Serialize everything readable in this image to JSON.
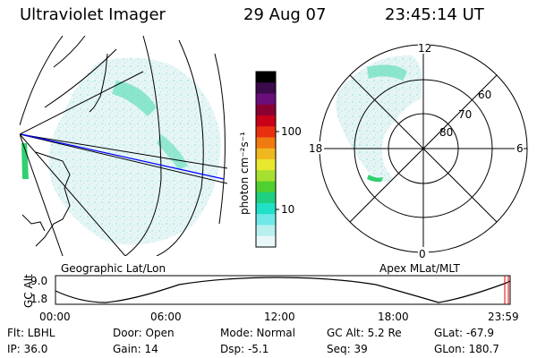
{
  "header": {
    "title": "Ultraviolet Imager",
    "date": "29 Aug 07",
    "time": "23:45:14 UT"
  },
  "colorbar": {
    "unit_label": "photon cm⁻²s⁻¹",
    "ticks": [
      "100",
      "10"
    ],
    "colors": [
      "#000000",
      "#3a0a4a",
      "#6a0f7a",
      "#8a0030",
      "#c80018",
      "#e83010",
      "#f07a10",
      "#f0b820",
      "#e8e830",
      "#a8e030",
      "#50d030",
      "#20d080",
      "#20e0c8",
      "#70e8e8",
      "#b8f0f0",
      "#e8f8f8"
    ]
  },
  "left_map": {
    "caption": "Geographic Lat/Lon"
  },
  "right_map": {
    "caption": "Apex MLat/MLT",
    "mlt_labels": [
      "12",
      "18",
      "6",
      "0"
    ],
    "lat_labels": [
      "60",
      "70",
      "80"
    ]
  },
  "timeline": {
    "ylabel": "GC Alt",
    "yticks": [
      "9.0",
      "1.8"
    ],
    "xticks": [
      "00:00",
      "06:00",
      "12:00",
      "18:00",
      "23:59"
    ]
  },
  "status": {
    "flt": "Flt: LBHL",
    "ip": "IP: 36.0",
    "door": "Door: Open",
    "gain": "Gain: 14",
    "mode": "Mode: Normal",
    "dsp": "Dsp:   -5.1",
    "gcalt": "GC Alt: 5.2 Re",
    "seq": "Seq: 39",
    "glat": "GLat: -67.9",
    "glon": "GLon: 180.7"
  }
}
